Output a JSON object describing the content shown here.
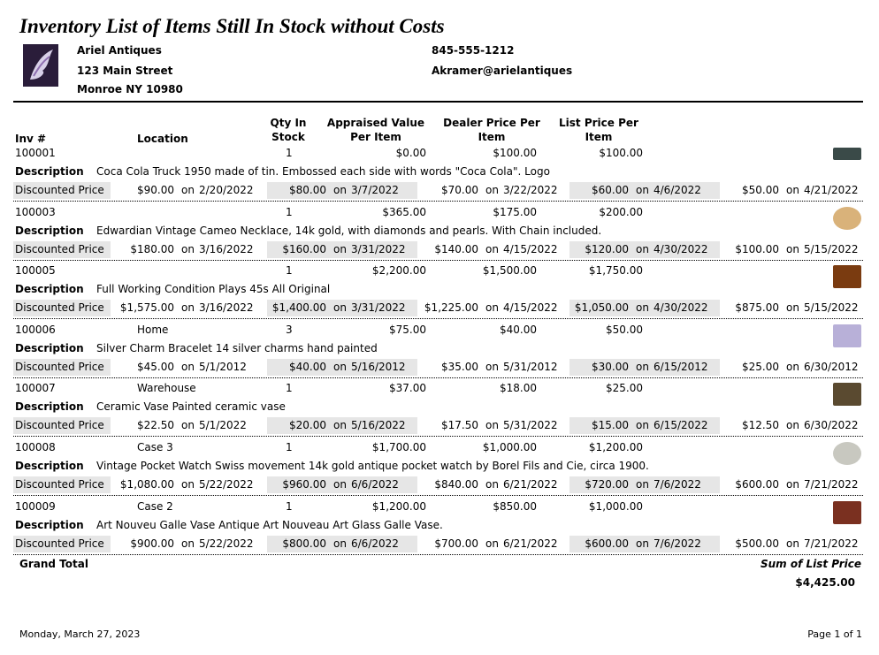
{
  "header": {
    "title": "Inventory List of Items Still In Stock without Costs",
    "company": "Ariel Antiques",
    "address1": "123 Main Street",
    "address2": "Monroe NY 10980",
    "phone": "845-555-1212",
    "email": "Akramer@arielantiques"
  },
  "columns": {
    "inv": "Inv #",
    "location": "Location",
    "qty": "Qty In Stock",
    "appraised": "Appraised Value Per Item",
    "dealer": "Dealer Price Per Item",
    "list": "List Price Per Item"
  },
  "labels": {
    "description": "Description",
    "discount": "Discounted Price",
    "on": "on"
  },
  "items": [
    {
      "inv": "100001",
      "qty": "1",
      "appraised": "$0.00",
      "dealer": "$100.00",
      "list": "$100.00",
      "description": "Coca Cola Truck 1950 made of tin.  Embossed each side with words \"Coca Cola\". Logo",
      "discounts": [
        {
          "price": "$90.00",
          "date": "2/20/2022"
        },
        {
          "price": "$80.00",
          "date": "3/7/2022"
        },
        {
          "price": "$70.00",
          "date": "3/22/2022"
        },
        {
          "price": "$60.00",
          "date": "4/6/2022"
        },
        {
          "price": "$50.00",
          "date": "4/21/2022"
        }
      ]
    },
    {
      "inv": "100003",
      "qty": "1",
      "appraised": "$365.00",
      "dealer": "$175.00",
      "list": "$200.00",
      "description": "Edwardian Vintage Cameo Necklace, 14k gold, with diamonds and pearls. With Chain included.",
      "discounts": [
        {
          "price": "$180.00",
          "date": "3/16/2022"
        },
        {
          "price": "$160.00",
          "date": "3/31/2022"
        },
        {
          "price": "$140.00",
          "date": "4/15/2022"
        },
        {
          "price": "$120.00",
          "date": "4/30/2022"
        },
        {
          "price": "$100.00",
          "date": "5/15/2022"
        }
      ]
    },
    {
      "inv": "100005",
      "qty": "1",
      "appraised": "$2,200.00",
      "dealer": "$1,500.00",
      "list": "$1,750.00",
      "description": "Full Working Condition Plays 45s All Original",
      "discounts": [
        {
          "price": "$1,575.00",
          "date": "3/16/2022"
        },
        {
          "price": "$1,400.00",
          "date": "3/31/2022"
        },
        {
          "price": "$1,225.00",
          "date": "4/15/2022"
        },
        {
          "price": "$1,050.00",
          "date": "4/30/2022"
        },
        {
          "price": "$875.00",
          "date": "5/15/2022"
        }
      ]
    },
    {
      "inv": "100006",
      "location": "Home",
      "qty": "3",
      "appraised": "$75.00",
      "dealer": "$40.00",
      "list": "$50.00",
      "description": "Silver Charm Bracelet 14 silver charms hand painted",
      "discounts": [
        {
          "price": "$45.00",
          "date": "5/1/2012"
        },
        {
          "price": "$40.00",
          "date": "5/16/2012"
        },
        {
          "price": "$35.00",
          "date": "5/31/2012"
        },
        {
          "price": "$30.00",
          "date": "6/15/2012"
        },
        {
          "price": "$25.00",
          "date": "6/30/2012"
        }
      ]
    },
    {
      "inv": "100007",
      "location": "Warehouse",
      "qty": "1",
      "appraised": "$37.00",
      "dealer": "$18.00",
      "list": "$25.00",
      "description": "Ceramic Vase Painted ceramic vase",
      "discounts": [
        {
          "price": "$22.50",
          "date": "5/1/2022"
        },
        {
          "price": "$20.00",
          "date": "5/16/2022"
        },
        {
          "price": "$17.50",
          "date": "5/31/2022"
        },
        {
          "price": "$15.00",
          "date": "6/15/2022"
        },
        {
          "price": "$12.50",
          "date": "6/30/2022"
        }
      ]
    },
    {
      "inv": "100008",
      "location": "Case 3",
      "qty": "1",
      "appraised": "$1,700.00",
      "dealer": "$1,000.00",
      "list": "$1,200.00",
      "description": "Vintage Pocket Watch Swiss movement 14k gold antique pocket watch by Borel Fils and Cie, circa 1900.",
      "discounts": [
        {
          "price": "$1,080.00",
          "date": "5/22/2022"
        },
        {
          "price": "$960.00",
          "date": "6/6/2022"
        },
        {
          "price": "$840.00",
          "date": "6/21/2022"
        },
        {
          "price": "$720.00",
          "date": "7/6/2022"
        },
        {
          "price": "$600.00",
          "date": "7/21/2022"
        }
      ]
    },
    {
      "inv": "100009",
      "location": "Case 2",
      "qty": "1",
      "appraised": "$1,200.00",
      "dealer": "$850.00",
      "list": "$1,000.00",
      "description": "Art Nouveu Galle Vase Antique Art Nouveau Art Glass Galle Vase.",
      "discounts": [
        {
          "price": "$900.00",
          "date": "5/22/2022"
        },
        {
          "price": "$800.00",
          "date": "6/6/2022"
        },
        {
          "price": "$700.00",
          "date": "6/21/2022"
        },
        {
          "price": "$600.00",
          "date": "7/6/2022"
        },
        {
          "price": "$500.00",
          "date": "7/21/2022"
        }
      ]
    }
  ],
  "footer": {
    "grand_total": "Grand Total",
    "sum_label": "Sum of List Price",
    "sum": "$4,425.00",
    "date": "Monday, March 27, 2023",
    "page": "Page 1 of 1"
  }
}
